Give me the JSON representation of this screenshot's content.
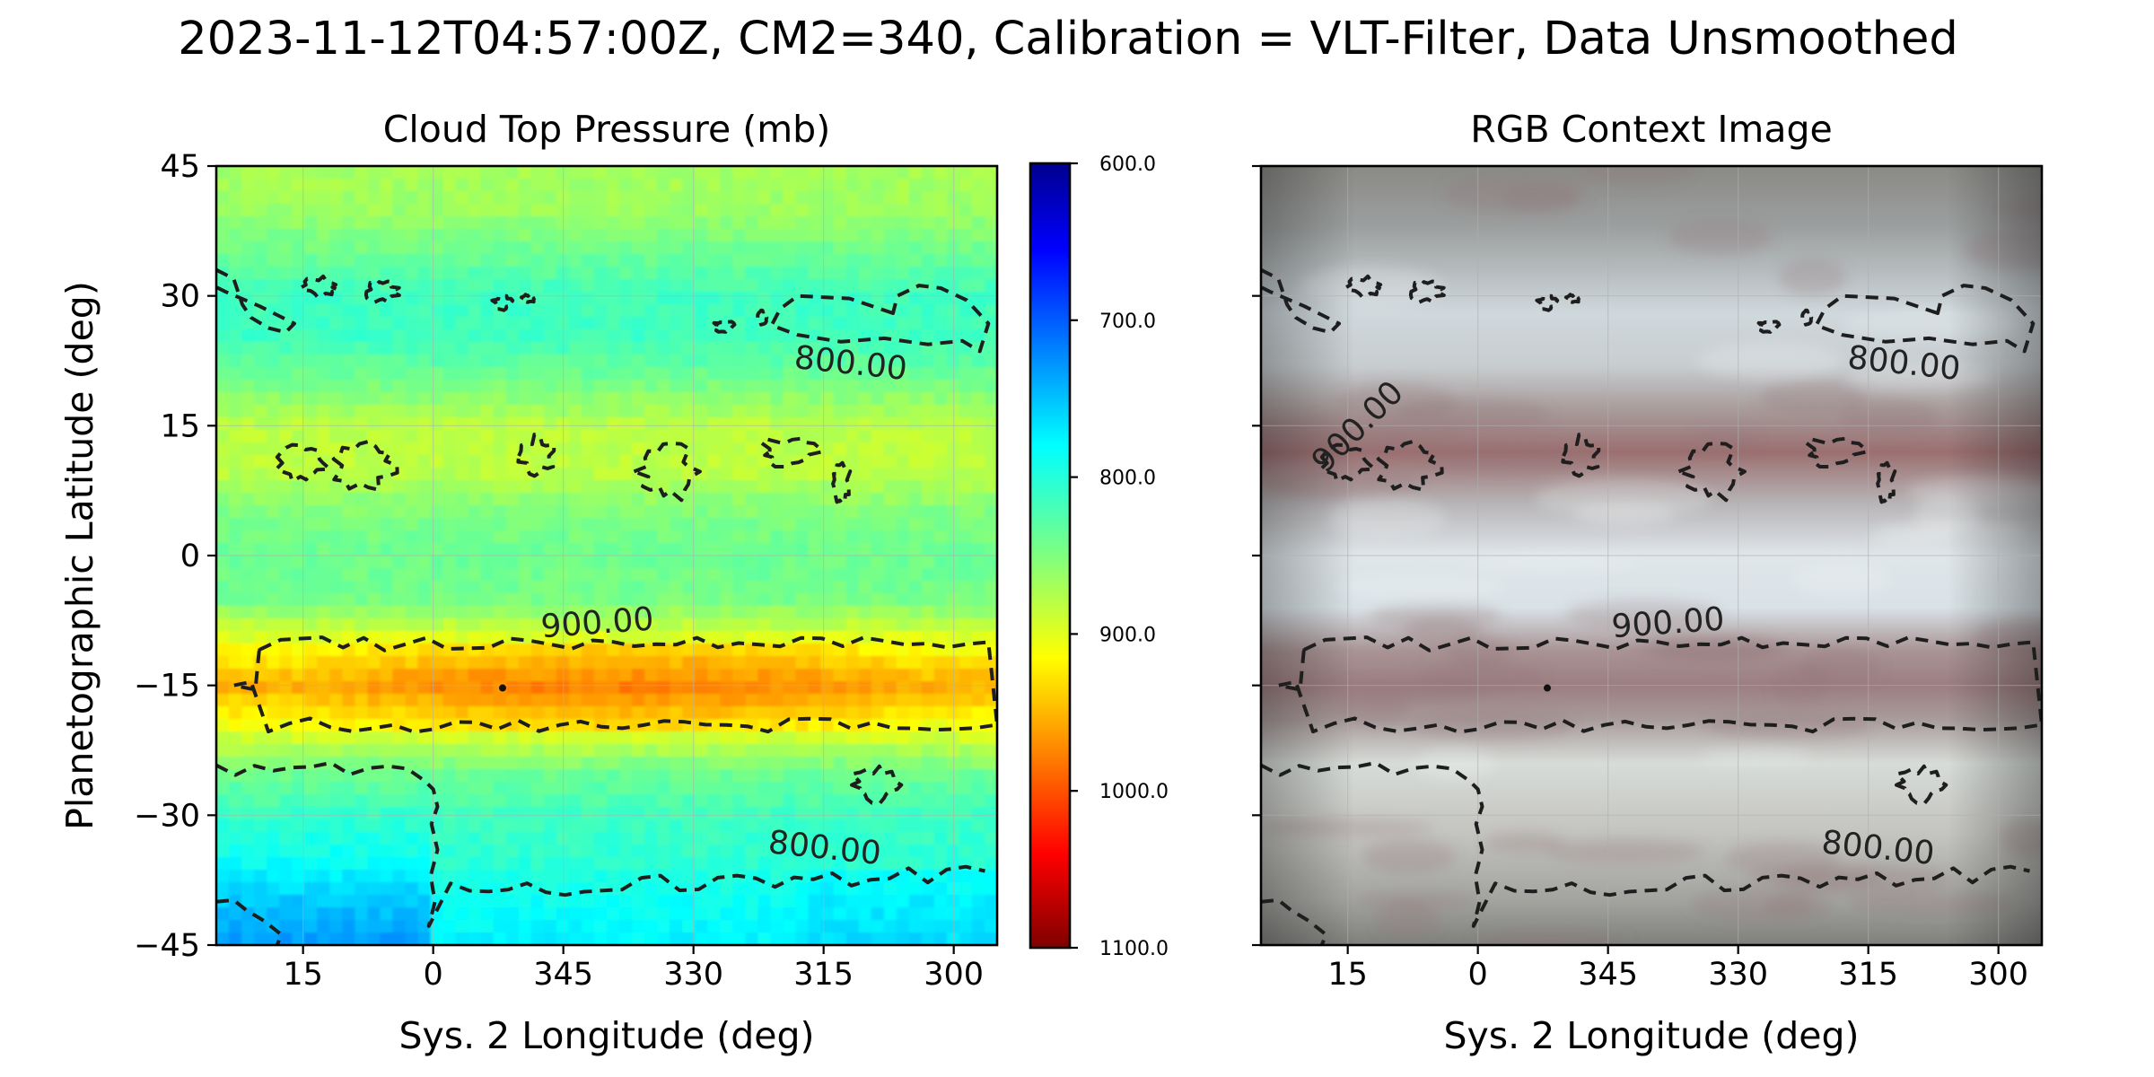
{
  "figure": {
    "suptitle": "2023-11-12T04:57:00Z, CM2=340, Calibration = VLT-Filter, Data Unsmoothed"
  },
  "chart_data": [
    {
      "type": "heatmap",
      "title": "Cloud Top Pressure (mb)",
      "xlabel": "Sys. 2 Longitude (deg)",
      "ylabel": "Planetographic Latitude (deg)",
      "xlim": [
        25,
        295
      ],
      "ylim": [
        -45,
        45
      ],
      "x_reversed": true,
      "xticks": [
        15,
        0,
        345,
        330,
        315,
        300
      ],
      "xtick_labels": [
        "15",
        "0",
        "345",
        "330",
        "315",
        "300"
      ],
      "yticks": [
        45,
        30,
        15,
        0,
        -15,
        -30,
        -45
      ],
      "ytick_labels": [
        "45",
        "30",
        "15",
        "0",
        "−15",
        "−30",
        "−45"
      ],
      "grid": true,
      "colormap": "jet (reversed)",
      "colorbar": {
        "range": [
          600,
          1100
        ],
        "ticks": [
          600,
          700,
          800,
          900,
          1000,
          1100
        ],
        "tick_labels": [
          "600.0",
          "700.0",
          "800.0",
          "900.0",
          "1000.0",
          "1100.0"
        ],
        "top_color": "#00008f",
        "bottom_color": "#7f0000"
      },
      "latitude_profile": [
        {
          "lat": 45,
          "pressure": 870
        },
        {
          "lat": 40,
          "pressure": 865
        },
        {
          "lat": 35,
          "pressure": 840
        },
        {
          "lat": 30,
          "pressure": 815
        },
        {
          "lat": 25,
          "pressure": 815
        },
        {
          "lat": 20,
          "pressure": 845
        },
        {
          "lat": 15,
          "pressure": 880
        },
        {
          "lat": 10,
          "pressure": 882
        },
        {
          "lat": 5,
          "pressure": 850
        },
        {
          "lat": 0,
          "pressure": 840
        },
        {
          "lat": -5,
          "pressure": 845
        },
        {
          "lat": -10,
          "pressure": 905
        },
        {
          "lat": -15,
          "pressure": 955
        },
        {
          "lat": -20,
          "pressure": 905
        },
        {
          "lat": -25,
          "pressure": 840
        },
        {
          "lat": -30,
          "pressure": 815
        },
        {
          "lat": -35,
          "pressure": 805
        },
        {
          "lat": -40,
          "pressure": 785
        },
        {
          "lat": -45,
          "pressure": 775
        }
      ],
      "contour_levels": [
        800,
        900
      ],
      "contour_labels": [
        {
          "text": "900.00",
          "lon": 341,
          "lat": -9
        },
        {
          "text": "800.00",
          "lon": 312,
          "lat": 21
        },
        {
          "text": "800.00",
          "lon": 315,
          "lat": -35
        }
      ]
    },
    {
      "type": "image",
      "title": "RGB Context Image",
      "xlabel": "Sys. 2 Longitude (deg)",
      "xlim": [
        25,
        295
      ],
      "ylim": [
        -45,
        45
      ],
      "x_reversed": true,
      "xticks": [
        15,
        0,
        345,
        330,
        315,
        300
      ],
      "xtick_labels": [
        "15",
        "0",
        "345",
        "330",
        "315",
        "300"
      ],
      "grid": true,
      "band_colors": [
        {
          "lat": 45,
          "color": "#8a8a86"
        },
        {
          "lat": 38,
          "color": "#9c9f9f"
        },
        {
          "lat": 28,
          "color": "#cfd8dc"
        },
        {
          "lat": 22,
          "color": "#c8cdd0"
        },
        {
          "lat": 17,
          "color": "#a99d9c"
        },
        {
          "lat": 12,
          "color": "#9b6f70"
        },
        {
          "lat": 6,
          "color": "#b7b4b6"
        },
        {
          "lat": 0,
          "color": "#dfe6ea"
        },
        {
          "lat": -6,
          "color": "#d9e2e6"
        },
        {
          "lat": -11,
          "color": "#a99495"
        },
        {
          "lat": -15,
          "color": "#9c7e80"
        },
        {
          "lat": -19,
          "color": "#a99c9c"
        },
        {
          "lat": -24,
          "color": "#d7dcd8"
        },
        {
          "lat": -32,
          "color": "#c4c4c0"
        },
        {
          "lat": -40,
          "color": "#a2a39f"
        },
        {
          "lat": -45,
          "color": "#7f807c"
        }
      ],
      "contour_labels": [
        {
          "text": "900.00",
          "lon": 338,
          "lat": -9
        },
        {
          "text": "800.00",
          "lon": 311,
          "lat": 21
        },
        {
          "text": "800.00",
          "lon": 314,
          "lat": -35
        },
        {
          "text": "900.00",
          "lon": 13,
          "lat": 14
        }
      ]
    }
  ]
}
